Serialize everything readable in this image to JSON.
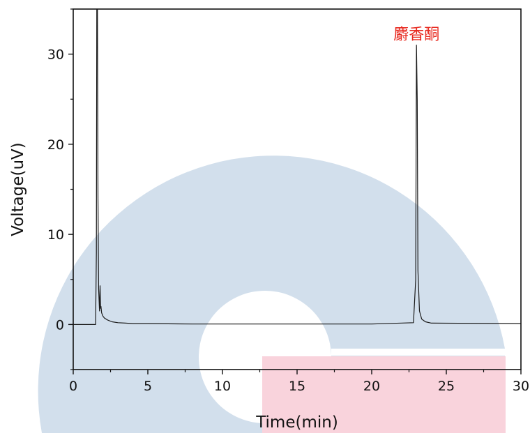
{
  "chart_data": {
    "type": "line",
    "xlabel": "Time(min)",
    "ylabel": "Voltage(uV)",
    "xlim": [
      0,
      30
    ],
    "ylim": [
      -5,
      35
    ],
    "x_ticks": [
      "0",
      "5",
      "10",
      "15",
      "20",
      "25",
      "30"
    ],
    "y_ticks": [
      "0",
      "10",
      "20",
      "30"
    ],
    "grid": false,
    "colors": {
      "line": "#1a1a1a",
      "peak_label": "#e8281e",
      "watermark_ring": "#d2dfec",
      "watermark_rect": "#f9d3dc"
    },
    "series": [
      {
        "x": [
          0,
          1.5,
          1.55,
          1.58,
          1.62,
          1.66,
          1.7,
          1.76,
          1.8,
          1.83,
          1.86,
          1.9,
          2.0,
          2.1,
          2.3,
          2.6,
          3.0,
          3.5,
          4.0,
          5.0,
          8.0,
          12.0,
          16.0,
          20.0,
          22.8,
          22.95,
          23.0,
          23.05,
          23.1,
          23.2,
          23.35,
          23.6,
          24.0,
          30.0
        ],
        "y": [
          0,
          0,
          8,
          36,
          36,
          14,
          4,
          1.5,
          4.3,
          1.8,
          2.0,
          1.3,
          0.9,
          0.7,
          0.5,
          0.3,
          0.2,
          0.15,
          0.1,
          0.1,
          0.05,
          0.05,
          0.05,
          0.05,
          0.2,
          5,
          31,
          25,
          6,
          1.5,
          0.6,
          0.3,
          0.15,
          0.1
        ]
      }
    ],
    "annotations": [
      {
        "text": "麝香酮",
        "x": 23.0,
        "y": 31
      }
    ]
  }
}
